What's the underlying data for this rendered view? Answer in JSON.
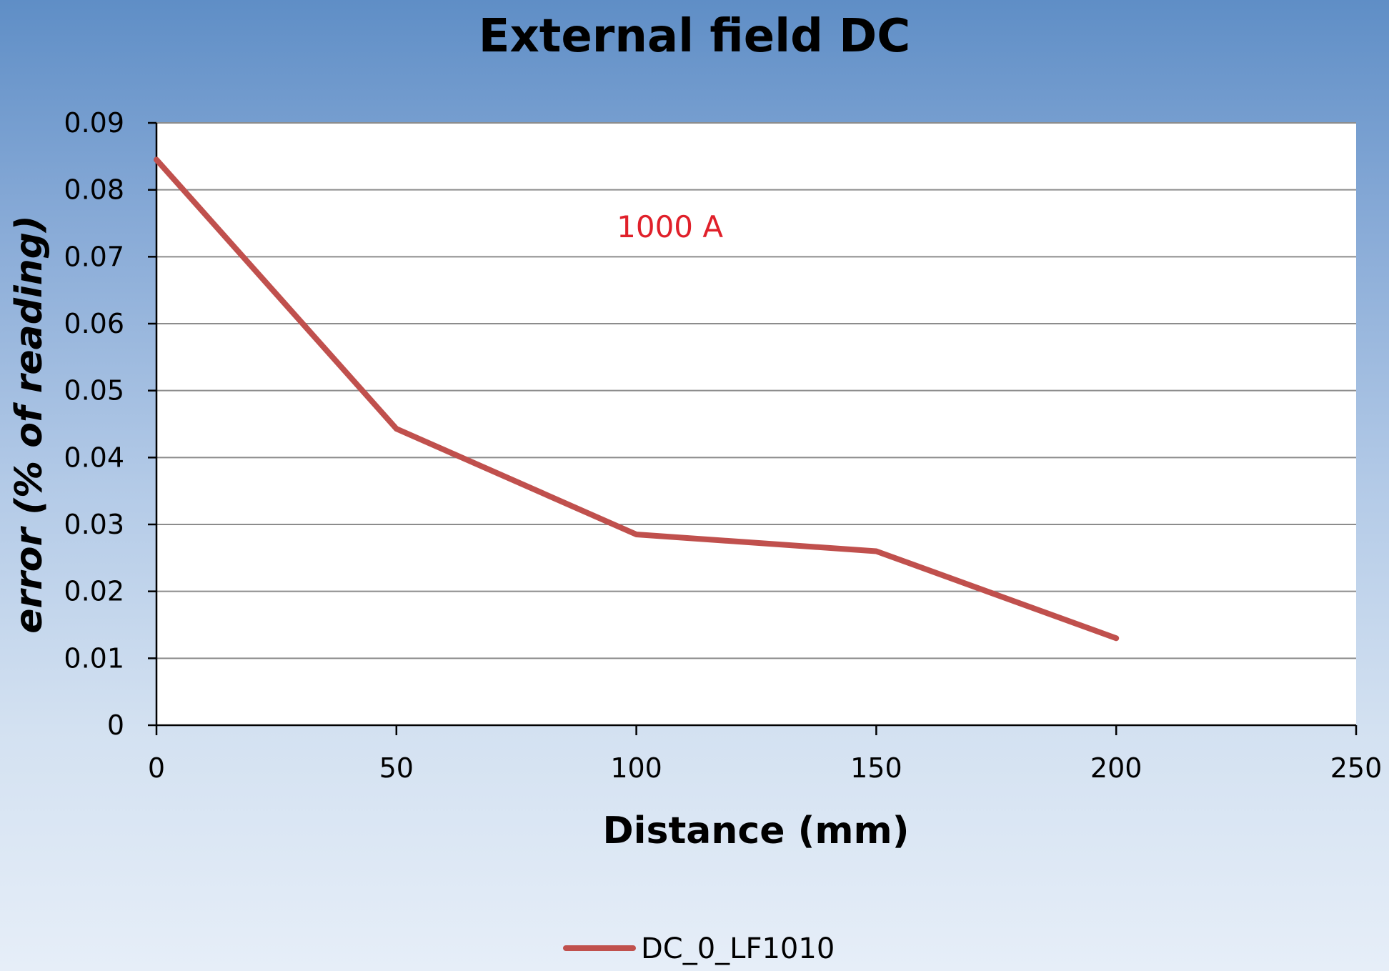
{
  "chart_data": {
    "type": "line",
    "title": "External field DC",
    "xlabel": "Distance (mm)",
    "ylabel": "error (% of reading)",
    "xlim": [
      0,
      250
    ],
    "ylim": [
      0,
      0.09
    ],
    "x_ticks": [
      "0",
      "50",
      "100",
      "150",
      "200",
      "250"
    ],
    "y_ticks": [
      "0",
      "0.01",
      "0.02",
      "0.03",
      "0.04",
      "0.05",
      "0.06",
      "0.07",
      "0.08",
      "0.09"
    ],
    "grid": true,
    "legend_position": "bottom",
    "annotation": {
      "text": "1000 A",
      "x": 107,
      "y": 0.0745,
      "color": "#e0202a"
    },
    "series": [
      {
        "name": "DC_0_LF1010",
        "color": "#c0504d",
        "x": [
          0,
          50,
          100,
          150,
          200
        ],
        "y": [
          0.0845,
          0.0443,
          0.0285,
          0.026,
          0.013
        ]
      }
    ]
  }
}
